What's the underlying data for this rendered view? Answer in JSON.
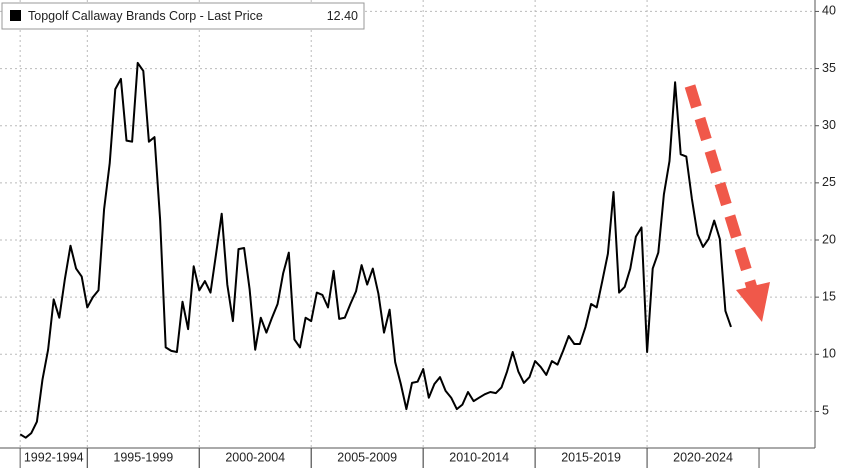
{
  "chart_data": {
    "type": "line",
    "series": [
      {
        "name": "Topgolf Callaway Brands Corp - Last Price",
        "color": "#000000",
        "last_price": {
          "value": 12.4,
          "label": "12.40"
        },
        "values": [
          3.0,
          2.7,
          3.1,
          4.1,
          7.8,
          10.4,
          14.8,
          13.2,
          16.6,
          19.5,
          17.5,
          16.8,
          14.1,
          15.0,
          15.6,
          22.7,
          26.7,
          33.2,
          34.1,
          28.7,
          28.6,
          35.5,
          34.8,
          28.6,
          29.0,
          21.8,
          10.6,
          10.3,
          10.2,
          14.6,
          12.2,
          17.7,
          15.6,
          16.4,
          15.4,
          18.8,
          22.3,
          16.1,
          12.9,
          19.2,
          19.3,
          15.7,
          10.4,
          13.2,
          11.9,
          13.2,
          14.4,
          17.1,
          18.9,
          11.3,
          10.6,
          13.2,
          12.9,
          15.4,
          15.2,
          14.1,
          17.3,
          13.1,
          13.2,
          14.4,
          15.5,
          17.8,
          16.1,
          17.5,
          15.3,
          11.9,
          13.9,
          9.3,
          7.4,
          5.2,
          7.5,
          7.6,
          8.7,
          6.2,
          7.4,
          8.0,
          6.8,
          6.2,
          5.2,
          5.6,
          6.7,
          5.9,
          6.2,
          6.5,
          6.7,
          6.6,
          7.1,
          8.5,
          10.2,
          8.5,
          7.5,
          8.0,
          9.4,
          8.9,
          8.2,
          9.4,
          9.1,
          10.3,
          11.6,
          10.9,
          10.9,
          12.4,
          14.4,
          14.1,
          16.4,
          18.8,
          24.2,
          15.4,
          15.9,
          17.5,
          20.3,
          21.1,
          10.2,
          17.5,
          18.9,
          24.0,
          26.9,
          33.8,
          27.5,
          27.3,
          23.6,
          20.5,
          19.4,
          20.1,
          21.7,
          20.1,
          13.8,
          12.4
        ]
      }
    ],
    "x": [
      1992,
      1992.25,
      1992.5,
      1992.75,
      1993,
      1993.25,
      1993.5,
      1993.75,
      1994,
      1994.25,
      1994.5,
      1994.75,
      1995,
      1995.25,
      1995.5,
      1995.75,
      1996,
      1996.25,
      1996.5,
      1996.75,
      1997,
      1997.25,
      1997.5,
      1997.75,
      1998,
      1998.25,
      1998.5,
      1998.75,
      1999,
      1999.25,
      1999.5,
      1999.75,
      2000,
      2000.25,
      2000.5,
      2000.75,
      2001,
      2001.25,
      2001.5,
      2001.75,
      2002,
      2002.25,
      2002.5,
      2002.75,
      2003,
      2003.25,
      2003.5,
      2003.75,
      2004,
      2004.25,
      2004.5,
      2004.75,
      2005,
      2005.25,
      2005.5,
      2005.75,
      2006,
      2006.25,
      2006.5,
      2006.75,
      2007,
      2007.25,
      2007.5,
      2007.75,
      2008,
      2008.25,
      2008.5,
      2008.75,
      2009,
      2009.25,
      2009.5,
      2009.75,
      2010,
      2010.25,
      2010.5,
      2010.75,
      2011,
      2011.25,
      2011.5,
      2011.75,
      2012,
      2012.25,
      2012.5,
      2012.75,
      2013,
      2013.25,
      2013.5,
      2013.75,
      2014,
      2014.25,
      2014.5,
      2014.75,
      2015,
      2015.25,
      2015.5,
      2015.75,
      2016,
      2016.25,
      2016.5,
      2016.75,
      2017,
      2017.25,
      2017.5,
      2017.75,
      2018,
      2018.25,
      2018.5,
      2018.75,
      2019,
      2019.25,
      2019.5,
      2019.75,
      2020,
      2020.25,
      2020.5,
      2020.75,
      2021,
      2021.25,
      2021.5,
      2021.75,
      2022,
      2022.25,
      2022.5,
      2022.75,
      2023,
      2023.25,
      2023.5,
      2023.75
    ],
    "x_bands": [
      {
        "label": "1992-1994",
        "from": 1992,
        "to": 1995
      },
      {
        "label": "1995-1999",
        "from": 1995,
        "to": 2000
      },
      {
        "label": "2000-2004",
        "from": 2000,
        "to": 2005
      },
      {
        "label": "2005-2009",
        "from": 2005,
        "to": 2010
      },
      {
        "label": "2010-2014",
        "from": 2010,
        "to": 2015
      },
      {
        "label": "2015-2019",
        "from": 2015,
        "to": 2020
      },
      {
        "label": "2020-2024",
        "from": 2020,
        "to": 2025
      }
    ],
    "xlim": [
      1991.1,
      2027.5
    ],
    "ylim": [
      1.8,
      41
    ],
    "yticks": [
      5,
      10,
      15,
      20,
      25,
      30,
      35,
      40
    ],
    "grid": true
  }
}
